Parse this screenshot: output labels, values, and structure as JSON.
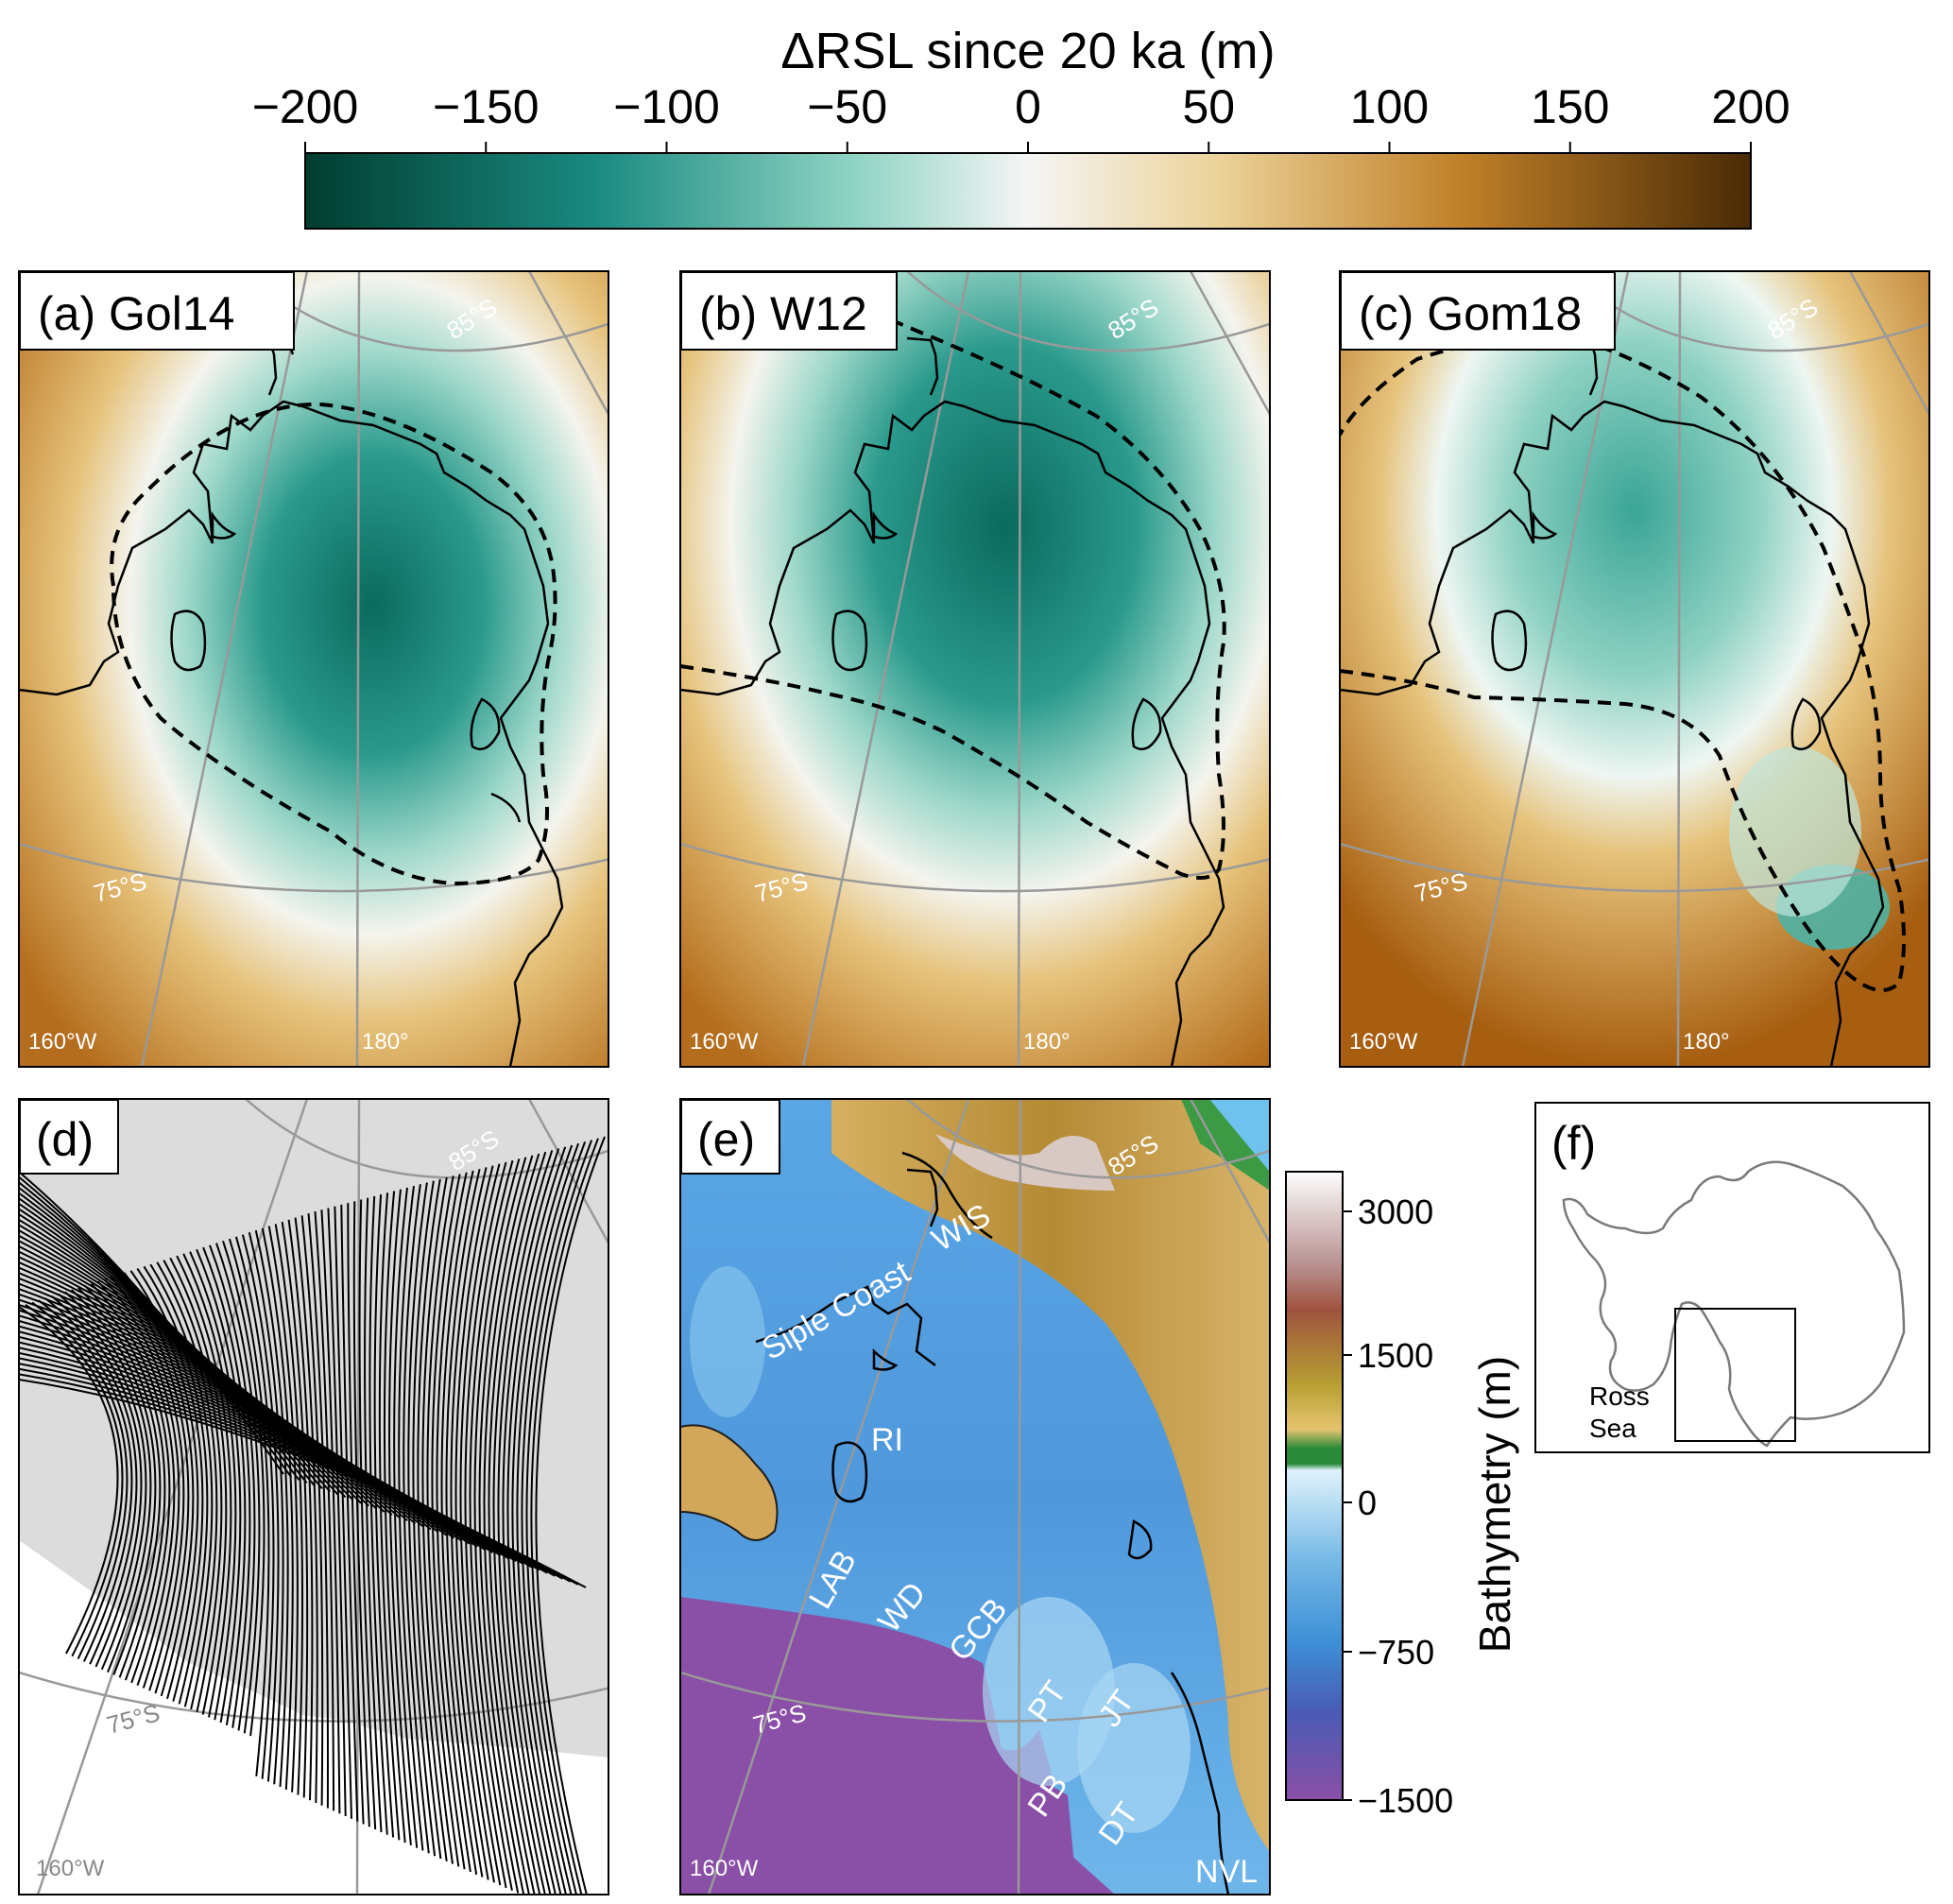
{
  "colorbar": {
    "title": "ΔRSL since 20 ka (m)",
    "ticks": [
      "−200",
      "−150",
      "−100",
      "−50",
      "0",
      "50",
      "100",
      "150",
      "200"
    ],
    "range": [
      -200,
      200
    ],
    "colors": [
      "#013d30",
      "#1a8a80",
      "#7fcdbb",
      "#f5f5f5",
      "#e6c885",
      "#b8751f",
      "#4a2a05"
    ]
  },
  "panels": {
    "a": {
      "label": "(a) Gol14"
    },
    "b": {
      "label": "(b) W12"
    },
    "c": {
      "label": "(c) Gom18"
    },
    "d": {
      "label": "(d)"
    },
    "e": {
      "label": "(e)"
    },
    "f": {
      "label": "(f)"
    }
  },
  "graticule": {
    "lat_85": "85°S",
    "lat_75": "75°S",
    "lon_160w": "160°W",
    "lon_180": "180°"
  },
  "map_e": {
    "places": {
      "siple": "Siple Coast",
      "wis": "WIS",
      "ri": "RI",
      "lab": "LAB",
      "wd": "WD",
      "gcb": "GCB",
      "pt": "PT",
      "jt": "JT",
      "pb": "PB",
      "dt": "DT",
      "nvl": "NVL"
    }
  },
  "bathy_bar": {
    "title": "Bathymetry (m)",
    "ticks": [
      "3000",
      "1500",
      "0",
      "−750",
      "−1500"
    ],
    "colors": [
      "#fdfdfd",
      "#a0533f",
      "#b8a032",
      "#e6c46e",
      "#2a8a3a",
      "#dff2fb",
      "#3d8fd6",
      "#4a5bb5",
      "#8a4fa6"
    ]
  },
  "inset_f": {
    "place_label_1": "Ross",
    "place_label_2": "Sea"
  }
}
